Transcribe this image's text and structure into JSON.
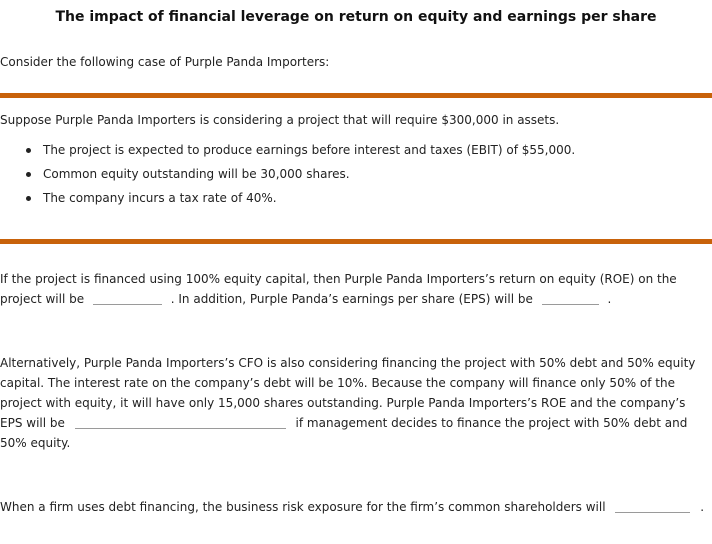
{
  "header": {
    "title": "The impact of financial leverage on return on equity and earnings per share"
  },
  "intro": {
    "text": "Consider the following case of Purple Panda Importers:"
  },
  "scenario": {
    "text": "Suppose Purple Panda Importers is considering a project that will require $300,000 in assets.",
    "bullets": [
      "The project is expected to produce earnings before interest and taxes (EBIT) of $55,000.",
      "Common equity outstanding will be 30,000 shares.",
      "The company incurs a tax rate of 40%."
    ]
  },
  "questions": {
    "q1": {
      "part1": "If the project is financed using 100% equity capital, then Purple Panda Importers’s return on equity (ROE) on the project will be",
      "part2": ". In addition, Purple Panda’s earnings per share (EPS) will be",
      "part3": "."
    },
    "q2": {
      "part1": "Alternatively, Purple Panda Importers’s CFO is also considering financing the project with 50% debt and 50% equity capital. The interest rate on the company’s debt will be 10%. Because the company will finance only 50% of the project with equity, it will have only 15,000 shares outstanding. Purple Panda Importers’s ROE and the company’s EPS will be",
      "part2": "if management decides to finance the project with 50% debt and 50% equity."
    },
    "q3": {
      "part1": "When a firm uses debt financing, the business risk exposure for the firm’s common shareholders will",
      "part2": "."
    }
  },
  "colors": {
    "rule": "#c8620a",
    "text": "#222222",
    "blank_line": "#9a9a9a"
  }
}
